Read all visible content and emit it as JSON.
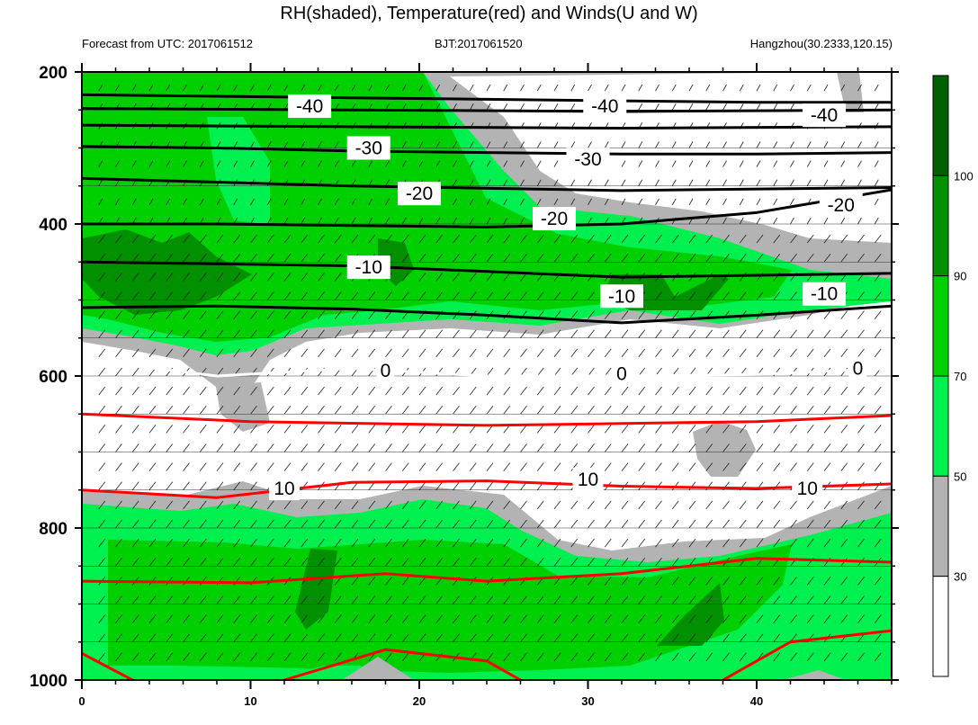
{
  "title": "RH(shaded), Temperature(red) and Winds(U and W)",
  "subtitle_left": "Forecast from UTC: 2017061512",
  "subtitle_center": "BJT:2017061520",
  "subtitle_right": "Hangzhou(30.2333,120.15)",
  "colors": {
    "rh_lt30": "#ffffff",
    "rh_30_50": "#b3b3b3",
    "rh_50_70": "#00f050",
    "rh_70_90": "#00d000",
    "rh_90_100": "#009000",
    "rh_gt100": "#006000",
    "temp_warm": "#ff0000",
    "temp_cold": "#000000",
    "temp_zero": "#ffffff"
  },
  "chart_data": {
    "type": "heatmap",
    "description_fields": "time-pressure cross section",
    "x": {
      "range": [
        0,
        48
      ],
      "ticks": [
        0,
        10,
        20,
        30,
        40
      ]
    },
    "y": {
      "range": [
        200,
        1000
      ],
      "ticks": [
        200,
        400,
        600,
        800,
        1000
      ],
      "inverted": true
    },
    "colorbar": {
      "levels": [
        30,
        50,
        70,
        90,
        100
      ],
      "colors": [
        "#ffffff",
        "#b3b3b3",
        "#00f050",
        "#00d000",
        "#009000",
        "#006000"
      ]
    },
    "temperature_contours": [
      {
        "level": -40,
        "label": "-40",
        "p": [
          230,
          232,
          234,
          236,
          238,
          240,
          240
        ],
        "t": [
          0,
          8,
          16,
          24,
          32,
          40,
          48
        ]
      },
      {
        "level": -30,
        "label": "-30",
        "p": [
          298,
          300,
          304,
          306,
          308,
          308,
          306
        ],
        "t": [
          0,
          8,
          16,
          24,
          32,
          40,
          48
        ]
      },
      {
        "level": -20,
        "label": "-20",
        "p": [
          400,
          400,
          402,
          404,
          400,
          385,
          355
        ],
        "t": [
          0,
          8,
          16,
          24,
          32,
          40,
          48
        ]
      },
      {
        "level": -10,
        "label": "-10",
        "p": [
          510,
          508,
          512,
          520,
          530,
          520,
          508
        ],
        "t": [
          0,
          8,
          16,
          24,
          32,
          40,
          48
        ]
      },
      {
        "level": 0,
        "label": "0",
        "p": [
          578,
          600,
          590,
          600,
          600,
          598,
          590
        ],
        "t": [
          0,
          8,
          16,
          24,
          32,
          40,
          48
        ]
      },
      {
        "level": 10,
        "label": "10",
        "p": [
          750,
          760,
          740,
          738,
          745,
          748,
          742
        ],
        "t": [
          0,
          8,
          16,
          24,
          32,
          40,
          48
        ]
      }
    ],
    "contour_labels": [
      {
        "text": "-40",
        "t": 13.5,
        "p": 245
      },
      {
        "text": "-40",
        "t": 31,
        "p": 245
      },
      {
        "text": "-40",
        "t": 44,
        "p": 257
      },
      {
        "text": "-30",
        "t": 17,
        "p": 300
      },
      {
        "text": "-30",
        "t": 30,
        "p": 315
      },
      {
        "text": "-20",
        "t": 20,
        "p": 360
      },
      {
        "text": "-20",
        "t": 28,
        "p": 393
      },
      {
        "text": "-20",
        "t": 45,
        "p": 375
      },
      {
        "text": "-10",
        "t": 17,
        "p": 457
      },
      {
        "text": "-10",
        "t": 32,
        "p": 495
      },
      {
        "text": "-10",
        "t": 44,
        "p": 492
      },
      {
        "text": "0",
        "t": 18,
        "p": 593
      },
      {
        "text": "0",
        "t": 32,
        "p": 597
      },
      {
        "text": "0",
        "t": 46,
        "p": 590
      },
      {
        "text": "10",
        "t": 12,
        "p": 748
      },
      {
        "text": "10",
        "t": 30,
        "p": 736
      },
      {
        "text": "10",
        "t": 43,
        "p": 748
      }
    ]
  }
}
